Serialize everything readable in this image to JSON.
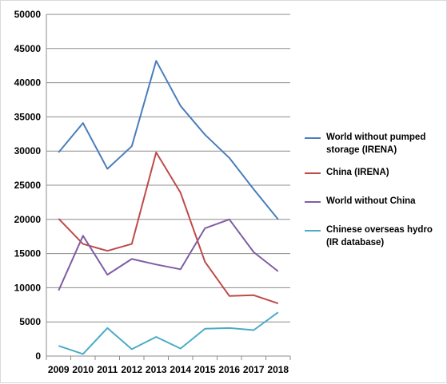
{
  "chart_data": {
    "type": "line",
    "x": [
      "2009",
      "2010",
      "2011",
      "2012",
      "2013",
      "2014",
      "2015",
      "2016",
      "2017",
      "2018"
    ],
    "ylim": [
      0,
      50000
    ],
    "yticks": [
      "0",
      "5000",
      "10000",
      "15000",
      "20000",
      "25000",
      "30000",
      "35000",
      "40000",
      "45000",
      "50000"
    ],
    "grid": true,
    "legend_position": "right",
    "series": [
      {
        "name": "World without pumped storage (IRENA)",
        "color": "#4a7ebb",
        "values": [
          29800,
          34100,
          27400,
          30700,
          43200,
          36600,
          32400,
          29000,
          24400,
          20000
        ]
      },
      {
        "name": "China (IRENA)",
        "color": "#be4b48",
        "values": [
          20100,
          16400,
          15400,
          16400,
          29800,
          23900,
          13800,
          8800,
          8900,
          7700
        ]
      },
      {
        "name": "World without China",
        "color": "#7e5ea3",
        "values": [
          9600,
          17600,
          11900,
          14200,
          13400,
          12700,
          18700,
          20000,
          15200,
          12400
        ]
      },
      {
        "name": "Chinese overseas  hydro (IR database)",
        "color": "#4bacc6",
        "values": [
          1500,
          300,
          4100,
          1000,
          2800,
          1100,
          4000,
          4100,
          3800,
          6400
        ]
      }
    ]
  }
}
